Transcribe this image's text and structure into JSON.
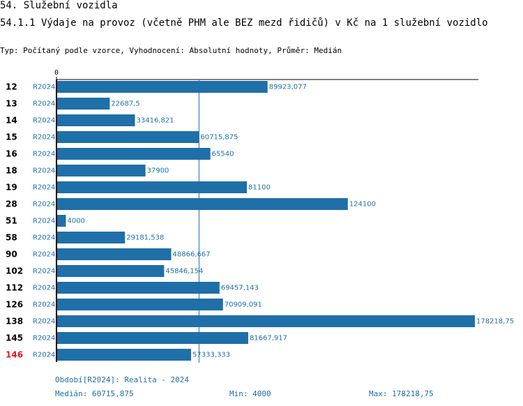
{
  "header": {
    "title": "54. Služební vozidla",
    "subtitle_main": "54.1.1 Výdaje na provoz (včetně PHM ale BEZ mezd řidičů) v Kč na 1 služební vozidlo",
    "meta": "Typ: Počítaný podle vzorce, Vyhodnocení: Absolutní hodnoty, Průměr: Medián"
  },
  "colors": {
    "bar": "#1f6fa8",
    "value_text": "#1f6fa8",
    "series_text": "#1f6fa8",
    "highlight_label": "#e8141b",
    "axis": "#000000",
    "median_line": "#1f6fa8"
  },
  "chart_data": {
    "type": "bar",
    "orientation": "horizontal",
    "axis_tick_label": "0",
    "categories": [
      "12",
      "13",
      "14",
      "15",
      "16",
      "18",
      "19",
      "28",
      "51",
      "58",
      "90",
      "102",
      "112",
      "126",
      "138",
      "145",
      "146"
    ],
    "series_labels": [
      "R2024",
      "R2024",
      "R2024",
      "R2024",
      "R2024",
      "R2024",
      "R2024",
      "R2024",
      "R2024",
      "R2024",
      "R2024",
      "R2024",
      "R2024",
      "R2024",
      "R2024",
      "R2024",
      "R2024"
    ],
    "values": [
      89923.077,
      22687.5,
      33416.821,
      60715.875,
      65540,
      37900,
      81100,
      124100,
      4000,
      29181.538,
      48866.667,
      45846.154,
      69457.143,
      70909.091,
      178218.75,
      81667.917,
      57333.333
    ],
    "value_labels": [
      "89923,077",
      "22687,5",
      "33416,821",
      "60715,875",
      "65540",
      "37900",
      "81100",
      "124100",
      "4000",
      "29181,538",
      "48866,667",
      "45846,154",
      "69457,143",
      "70909,091",
      "178218,75",
      "81667,917",
      "57333,333"
    ],
    "highlighted_category": "146",
    "median": 60715.875,
    "min": 4000,
    "max": 178218.75,
    "xlim": [
      0,
      178218.75
    ]
  },
  "footer": {
    "period": "Období[R2024]: Realita - 2024",
    "median": "Medián: 60715,875",
    "min": "Min: 4000",
    "max": "Max: 178218,75"
  }
}
